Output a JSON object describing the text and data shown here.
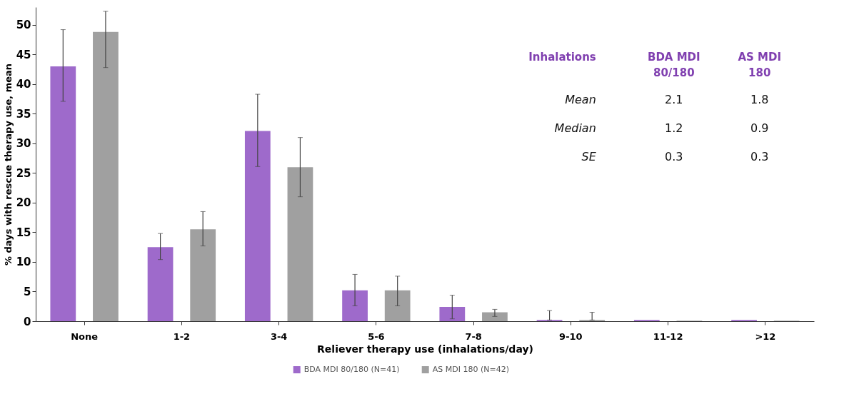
{
  "chart_data": {
    "type": "bar",
    "xlabel": "Reliever therapy use (inhalations/day)",
    "ylabel": "% days with rescue therapy use, mean",
    "categories": [
      "None",
      "1-2",
      "3-4",
      "5-6",
      "7-8",
      "9-10",
      "11-12",
      ">12"
    ],
    "series": [
      {
        "name": "BDA MDI 80/180 (N=41)",
        "color": "#9e6acb",
        "values": [
          43.0,
          12.5,
          32.1,
          5.2,
          2.4,
          0.2,
          0.2,
          0.2
        ],
        "errors": [
          [
            37.1,
            49.2
          ],
          [
            10.4,
            14.8
          ],
          [
            26.1,
            38.3
          ],
          [
            2.6,
            7.9
          ],
          [
            0.4,
            4.4
          ],
          [
            0.2,
            1.8
          ],
          null,
          null
        ]
      },
      {
        "name": "AS MDI 180 (N=42)",
        "color": "#a0a0a0",
        "values": [
          48.8,
          15.5,
          26.0,
          5.2,
          1.5,
          0.2,
          0.1,
          0.1
        ],
        "errors": [
          [
            42.8,
            52.3
          ],
          [
            12.7,
            18.5
          ],
          [
            21.0,
            31.0
          ],
          [
            2.6,
            7.6
          ],
          [
            0.8,
            2.0
          ],
          [
            0.2,
            1.5
          ],
          null,
          null
        ]
      }
    ],
    "ylim": [
      0,
      53
    ],
    "yticks": [
      0,
      5,
      10,
      15,
      20,
      25,
      30,
      35,
      40,
      45,
      50
    ],
    "grid": false,
    "legend": "bottom",
    "annotations": [
      "Inhalations",
      "BDA MDI\n80/180",
      "AS MDI\n180",
      "Mean",
      "2.1",
      "1.8",
      "Median",
      "1.2",
      "0.9",
      "SE",
      "0.3",
      "0.3"
    ]
  }
}
